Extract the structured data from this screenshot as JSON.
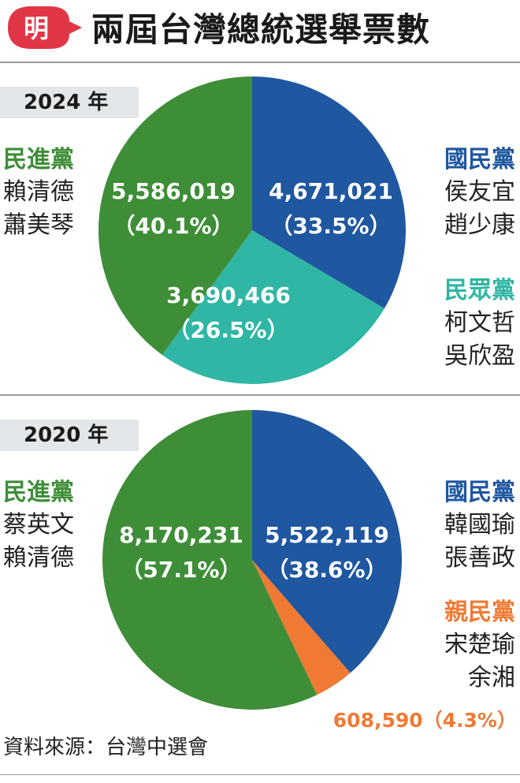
{
  "header": {
    "logo_text": "明",
    "title": "兩屆台灣總統選舉票數"
  },
  "colors": {
    "dpp": "#3e8e38",
    "kmt": "#1f57a0",
    "tpp": "#2fb6a4",
    "pfp": "#f07a34",
    "logo": "#e13646"
  },
  "chart_data": [
    {
      "type": "pie",
      "title": "2024 年",
      "slices": [
        {
          "party": "國民黨",
          "votes": 4671021,
          "votes_label": "4,671,021",
          "percent": 33.5,
          "percent_label": "（33.5%）",
          "candidates": [
            "侯友宜",
            "趙少康"
          ]
        },
        {
          "party": "民眾黨",
          "votes": 3690466,
          "votes_label": "3,690,466",
          "percent": 26.5,
          "percent_label": "（26.5%）",
          "candidates": [
            "柯文哲",
            "吳欣盈"
          ]
        },
        {
          "party": "民進黨",
          "votes": 5586019,
          "votes_label": "5,586,019",
          "percent": 40.1,
          "percent_label": "（40.1%）",
          "candidates": [
            "賴清德",
            "蕭美琴"
          ]
        }
      ]
    },
    {
      "type": "pie",
      "title": "2020 年",
      "slices": [
        {
          "party": "國民黨",
          "votes": 5522119,
          "votes_label": "5,522,119",
          "percent": 38.6,
          "percent_label": "（38.6%）",
          "candidates": [
            "韓國瑜",
            "張善政"
          ]
        },
        {
          "party": "親民黨",
          "votes": 608590,
          "votes_label": "608,590（4.3%）",
          "percent": 4.3,
          "percent_label": "",
          "candidates": [
            "宋楚瑜",
            "余湘"
          ]
        },
        {
          "party": "民進黨",
          "votes": 8170231,
          "votes_label": "8,170,231",
          "percent": 57.1,
          "percent_label": "（57.1%）",
          "candidates": [
            "蔡英文",
            "賴清德"
          ]
        }
      ]
    }
  ],
  "source": "資料來源：台灣中選會"
}
